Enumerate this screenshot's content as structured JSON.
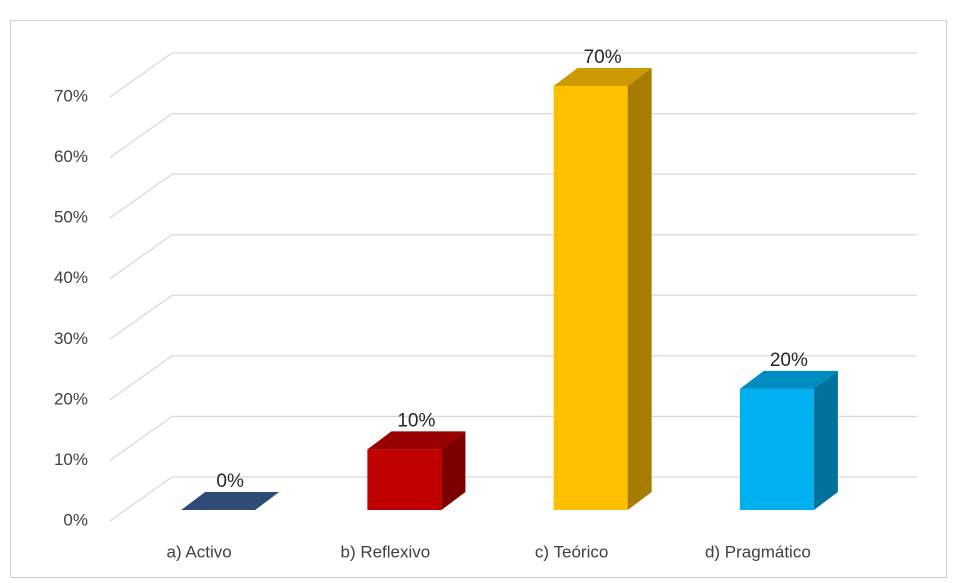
{
  "chart_data": {
    "type": "bar3d",
    "categories": [
      "a) Activo",
      "b) Reflexivo",
      "c) Teórico",
      "d)  Pragmático"
    ],
    "values": [
      0,
      10,
      70,
      20
    ],
    "value_labels": [
      "0%",
      "10%",
      "70%",
      "20%"
    ],
    "colors": [
      "#3b5f94",
      "#c00000",
      "#ffc000",
      "#00b0f0"
    ],
    "ylim": [
      0,
      70
    ],
    "yticks": [
      {
        "value": 0,
        "label": "0%"
      },
      {
        "value": 10,
        "label": "10%"
      },
      {
        "value": 20,
        "label": "20%"
      },
      {
        "value": 30,
        "label": "30%"
      },
      {
        "value": 40,
        "label": "40%"
      },
      {
        "value": 50,
        "label": "50%"
      },
      {
        "value": 60,
        "label": "60%"
      },
      {
        "value": 70,
        "label": "70%"
      }
    ],
    "grid": true
  }
}
